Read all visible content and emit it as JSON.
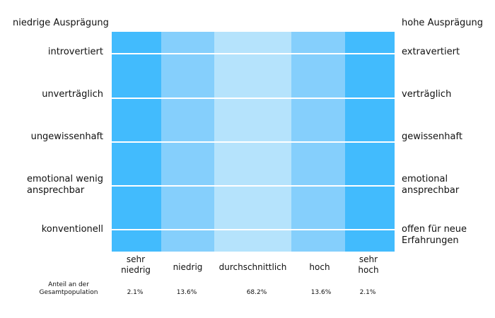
{
  "header": {
    "low_label": "niedrige Ausprägung",
    "high_label": "hohe Ausprägung"
  },
  "traits": [
    {
      "low": "introvertiert",
      "high": "extravertiert"
    },
    {
      "low": "unverträglich",
      "high": "verträglich"
    },
    {
      "low": "ungewissenhaft",
      "high": "gewissenhaft"
    },
    {
      "low": "emotional wenig ansprechbar",
      "high": "emotional ansprechbar"
    },
    {
      "low": "konventionell",
      "high": "offen für neue Erfahrungen"
    }
  ],
  "categories": [
    {
      "label": "sehr niedrig",
      "share": "2.1%",
      "color": "#42bbfd"
    },
    {
      "label": "niedrig",
      "share": "13.6%",
      "color": "#85cffc"
    },
    {
      "label": "durchschnittlich",
      "share": "68.2%",
      "color": "#b5e3fc"
    },
    {
      "label": "hoch",
      "share": "13.6%",
      "color": "#85cffc"
    },
    {
      "label": "sehr hoch",
      "share": "2.1%",
      "color": "#42bbfd"
    }
  ],
  "footer": {
    "share_label": "Anteil an der Gesamtpopulation"
  }
}
